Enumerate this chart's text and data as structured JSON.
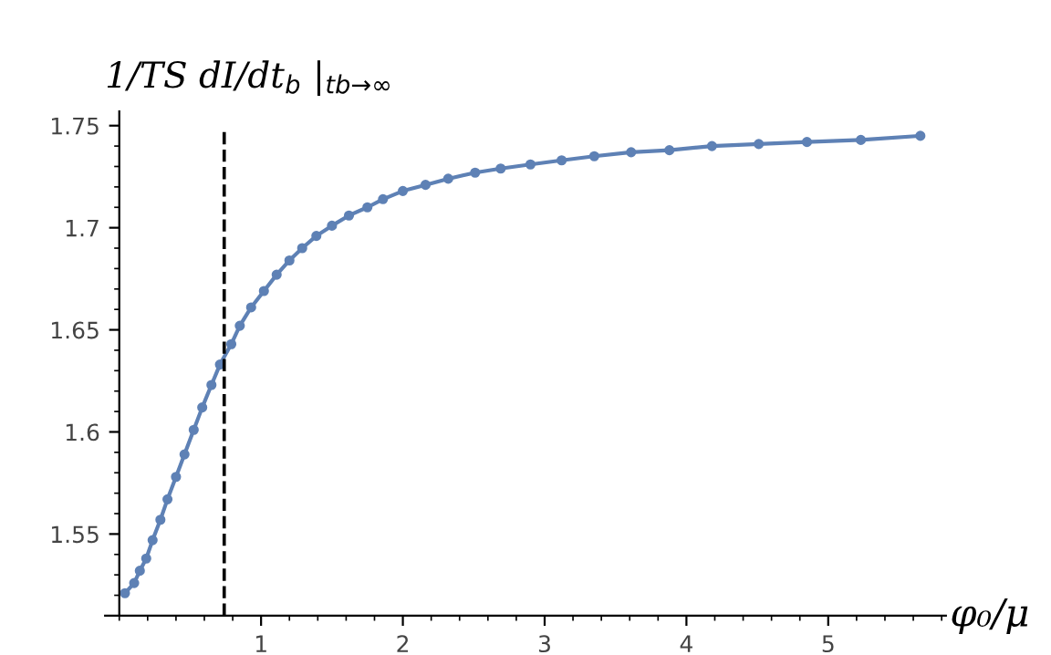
{
  "chart_data": {
    "type": "line",
    "xlabel": "φ₀/μ",
    "ylabel": "1/TS dI/dt$_{b}$ |$_{tb→∞}$",
    "series": [
      {
        "color": "#5e81b5",
        "x": [
          0.04,
          0.105,
          0.145,
          0.19,
          0.235,
          0.29,
          0.34,
          0.4,
          0.46,
          0.525,
          0.585,
          0.65,
          0.71,
          0.79,
          0.85,
          0.93,
          1.02,
          1.11,
          1.2,
          1.29,
          1.39,
          1.5,
          1.62,
          1.75,
          1.86,
          2.0,
          2.16,
          2.32,
          2.51,
          2.69,
          2.9,
          3.12,
          3.35,
          3.61,
          3.88,
          4.18,
          4.51,
          4.85,
          5.23,
          5.65
        ],
        "values": [
          1.521,
          1.526,
          1.532,
          1.538,
          1.547,
          1.557,
          1.567,
          1.578,
          1.589,
          1.601,
          1.612,
          1.623,
          1.633,
          1.643,
          1.652,
          1.661,
          1.669,
          1.677,
          1.684,
          1.69,
          1.696,
          1.701,
          1.706,
          1.71,
          1.714,
          1.718,
          1.721,
          1.724,
          1.727,
          1.729,
          1.731,
          1.733,
          1.735,
          1.737,
          1.738,
          1.74,
          1.741,
          1.742,
          1.743,
          1.745
        ]
      }
    ],
    "marker": "circle",
    "line_style": "solid",
    "grid": false,
    "legend": false,
    "xlim": [
      -0.1,
      5.83
    ],
    "ylim": [
      1.51,
      1.757
    ],
    "xticks": [
      1,
      2,
      3,
      4,
      5
    ],
    "yticks": [
      1.55,
      1.6,
      1.65,
      1.7,
      1.75
    ],
    "ref_lines": [
      {
        "axis": "x",
        "value": 0.74,
        "color": "#000000",
        "line_style": "dashed"
      }
    ]
  }
}
